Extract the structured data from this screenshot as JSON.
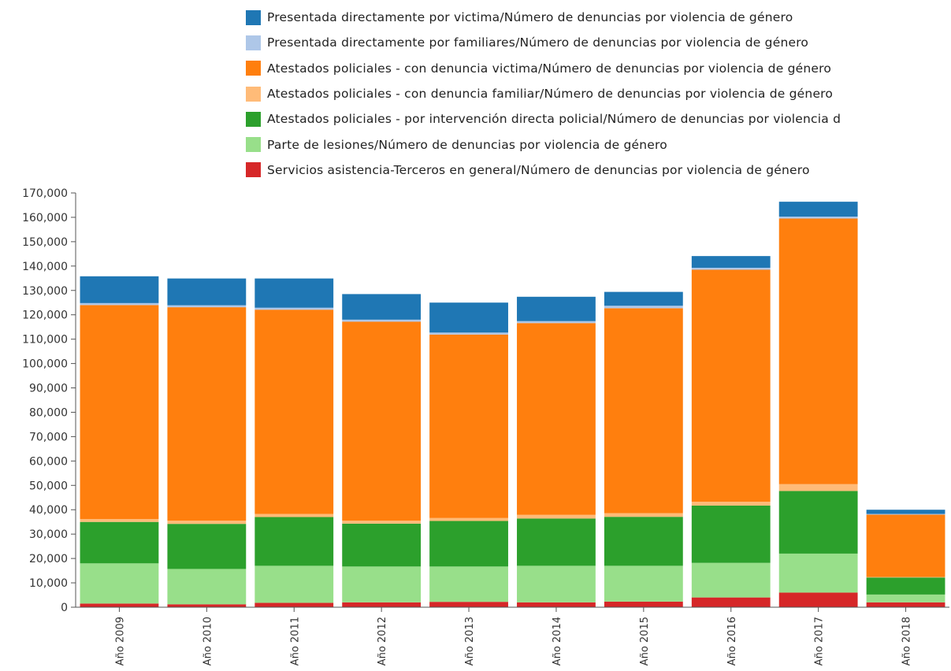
{
  "chart_data": {
    "type": "bar",
    "stacked": true,
    "categories": [
      "Año 2009",
      "Año 2010",
      "Año 2011",
      "Año 2012",
      "Año 2013",
      "Año 2014",
      "Año 2015",
      "Año 2016",
      "Año 2017",
      "Año 2018"
    ],
    "ylim": [
      0,
      170000
    ],
    "yticks": [
      0,
      10000,
      20000,
      30000,
      40000,
      50000,
      60000,
      70000,
      80000,
      90000,
      100000,
      110000,
      120000,
      130000,
      140000,
      150000,
      160000,
      170000
    ],
    "ytick_labels": [
      "0",
      "10,000",
      "20,000",
      "30,000",
      "40,000",
      "50,000",
      "60,000",
      "70,000",
      "80,000",
      "90,000",
      "100,000",
      "110,000",
      "120,000",
      "130,000",
      "140,000",
      "150,000",
      "160,000",
      "170,000"
    ],
    "legend_position": "top",
    "grid": false,
    "series": [
      {
        "name": "Servicios asistencia-Terceros en general/Número de denuncias por violencia de género",
        "color": "#d62728",
        "values": [
          1500,
          1200,
          1800,
          2000,
          2200,
          2000,
          2300,
          4000,
          6000,
          2000
        ]
      },
      {
        "name": "Parte de lesiones/Número de denuncias por violencia de género",
        "color": "#98df8a",
        "values": [
          16500,
          14500,
          15200,
          14700,
          14500,
          15000,
          14700,
          14200,
          16000,
          3200
        ]
      },
      {
        "name": "Atestados policiales - por intervención directa policial/Número de denuncias por violencia de género",
        "color": "#2ca02c",
        "values": [
          17000,
          18500,
          20000,
          17600,
          18700,
          19400,
          20100,
          23500,
          25700,
          7000
        ]
      },
      {
        "name": "Atestados policiales - con denuncia familiar/Número de denuncias por violencia de género",
        "color": "#ffbb78",
        "values": [
          1200,
          1300,
          1300,
          1200,
          1200,
          1500,
          1500,
          1600,
          2800,
          200
        ]
      },
      {
        "name": "Atestados policiales - con denuncia victima/Número de denuncias por violencia de género",
        "color": "#ff7f0e",
        "values": [
          87800,
          87600,
          83800,
          81700,
          75300,
          78700,
          84100,
          95200,
          109000,
          25600
        ]
      },
      {
        "name": "Presentada directamente por familiares/Número de denuncias por violencia de género",
        "color": "#aec7e8",
        "values": [
          800,
          800,
          800,
          800,
          800,
          800,
          1000,
          800,
          800,
          300
        ]
      },
      {
        "name": "Presentada directamente por victima/Número de denuncias por violencia de género",
        "color": "#1f77b4",
        "values": [
          11000,
          11000,
          12000,
          10500,
          12300,
          10000,
          5700,
          4800,
          6100,
          1700
        ]
      }
    ],
    "legend": [
      {
        "label": "Presentada directamente por victima/Número de denuncias por violencia de género",
        "color": "#1f77b4"
      },
      {
        "label": "Presentada directamente por familiares/Número de denuncias por violencia de género",
        "color": "#aec7e8"
      },
      {
        "label": "Atestados policiales - con denuncia victima/Número de denuncias por violencia de género",
        "color": "#ff7f0e"
      },
      {
        "label": "Atestados policiales - con denuncia familiar/Número de denuncias por violencia de género",
        "color": "#ffbb78"
      },
      {
        "label": "Atestados policiales - por intervención directa policial/Número de denuncias por violencia d",
        "color": "#2ca02c"
      },
      {
        "label": "Parte de lesiones/Número de denuncias por violencia de género",
        "color": "#98df8a"
      },
      {
        "label": "Servicios asistencia-Terceros en general/Número de denuncias por violencia de género",
        "color": "#d62728"
      }
    ]
  }
}
